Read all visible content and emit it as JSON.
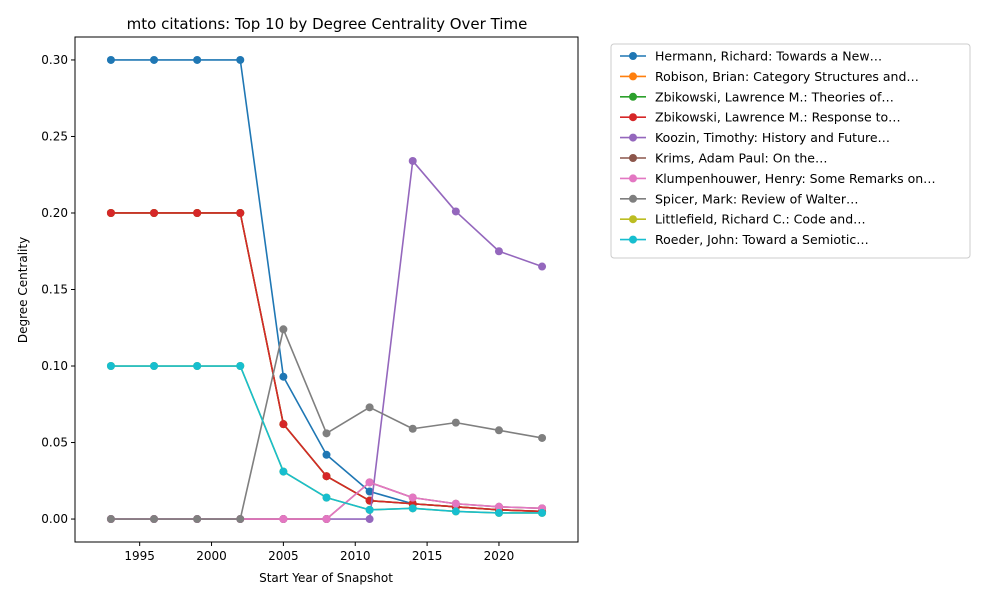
{
  "chart_data": {
    "type": "line",
    "title": "mto citations: Top 10 by Degree Centrality Over Time",
    "xlabel": "Start Year of Snapshot",
    "ylabel": "Degree Centrality",
    "xlim": [
      1990.5,
      2025.5
    ],
    "ylim": [
      -0.015,
      0.315
    ],
    "xticks": [
      1995,
      2000,
      2005,
      2010,
      2015,
      2020
    ],
    "xtick_labels": [
      "1995",
      "2000",
      "2005",
      "2010",
      "2015",
      "2020"
    ],
    "yticks": [
      0.0,
      0.05,
      0.1,
      0.15,
      0.2,
      0.25,
      0.3
    ],
    "ytick_labels": [
      "0.00",
      "0.05",
      "0.10",
      "0.15",
      "0.20",
      "0.25",
      "0.30"
    ],
    "legend_position": "outside-right",
    "x": [
      1993,
      1996,
      1999,
      2002,
      2005,
      2008,
      2011,
      2014,
      2017,
      2020,
      2023
    ],
    "series": [
      {
        "name": "Hermann, Richard: Towards a New…",
        "color": "#1f77b4",
        "values": [
          0.3,
          0.3,
          0.3,
          0.3,
          0.093,
          0.042,
          0.018,
          0.01,
          0.008,
          0.006,
          0.005
        ]
      },
      {
        "name": "Robison, Brian: Category Structures and…",
        "color": "#ff7f0e",
        "values": [
          0.2,
          0.2,
          0.2,
          0.2,
          0.062,
          0.028,
          0.012,
          0.01,
          0.008,
          0.006,
          0.005
        ]
      },
      {
        "name": "Zbikowski, Lawrence M.: Theories of…",
        "color": "#2ca02c",
        "values": [
          0.2,
          0.2,
          0.2,
          0.2,
          0.062,
          0.028,
          0.012,
          0.01,
          0.008,
          0.006,
          0.005
        ]
      },
      {
        "name": "Zbikowski, Lawrence M.: Response to…",
        "color": "#d62728",
        "values": [
          0.2,
          0.2,
          0.2,
          0.2,
          0.062,
          0.028,
          0.012,
          0.01,
          0.008,
          0.006,
          0.005
        ]
      },
      {
        "name": "Koozin, Timothy: History and Future…",
        "color": "#9467bd",
        "values": [
          0.0,
          0.0,
          0.0,
          0.0,
          0.0,
          0.0,
          0.0,
          0.234,
          0.201,
          0.175,
          0.165
        ]
      },
      {
        "name": "Krims, Adam Paul: On the…",
        "color": "#8c564b",
        "values": [
          0.0,
          0.0,
          0.0,
          0.0,
          0.0,
          0.0,
          0.024,
          0.014,
          0.01,
          0.008,
          0.007
        ]
      },
      {
        "name": "Klumpenhouwer, Henry: Some Remarks on…",
        "color": "#e377c2",
        "values": [
          0.0,
          0.0,
          0.0,
          0.0,
          0.0,
          0.0,
          0.024,
          0.014,
          0.01,
          0.008,
          0.007
        ]
      },
      {
        "name": "Spicer, Mark: Review of Walter…",
        "color": "#7f7f7f",
        "values": [
          0.0,
          0.0,
          0.0,
          0.0,
          0.124,
          0.056,
          0.073,
          0.059,
          0.063,
          0.058,
          0.053
        ]
      },
      {
        "name": "Littlefield, Richard C.: Code and…",
        "color": "#bcbd22",
        "values": [
          0.1,
          0.1,
          0.1,
          0.1,
          0.031,
          0.014,
          0.006,
          0.007,
          0.005,
          0.004,
          0.004
        ]
      },
      {
        "name": "Roeder, John: Toward a Semiotic…",
        "color": "#17becf",
        "values": [
          0.1,
          0.1,
          0.1,
          0.1,
          0.031,
          0.014,
          0.006,
          0.007,
          0.005,
          0.004,
          0.004
        ]
      }
    ]
  }
}
